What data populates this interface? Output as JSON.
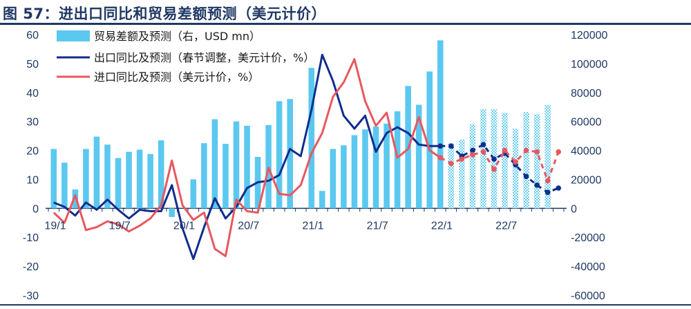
{
  "figure": {
    "title": "图 57：进出口同比和贸易差额预测（美元计价）"
  },
  "chart_data": {
    "type": "bar+line",
    "title": "图 57：进出口同比和贸易差额预测（美元计价）",
    "categories": [
      "19/1",
      "19/2",
      "19/3",
      "19/4",
      "19/5",
      "19/6",
      "19/7",
      "19/8",
      "19/9",
      "19/10",
      "19/11",
      "19/12",
      "20/1",
      "20/2",
      "20/3",
      "20/4",
      "20/5",
      "20/6",
      "20/7",
      "20/8",
      "20/9",
      "20/10",
      "20/11",
      "20/12",
      "21/1",
      "21/2",
      "21/3",
      "21/4",
      "21/5",
      "21/6",
      "21/7",
      "21/8",
      "21/9",
      "21/10",
      "21/11",
      "21/12",
      "22/1",
      "22/2",
      "22/3",
      "22/4",
      "22/5",
      "22/6",
      "22/7",
      "22/8",
      "22/9",
      "22/10",
      "22/11",
      "22/12"
    ],
    "x_tick_labels": [
      "19/1",
      "19/7",
      "20/1",
      "20/7",
      "21/1",
      "21/7",
      "22/1",
      "22/7"
    ],
    "x_tick_indices": [
      0,
      6,
      12,
      18,
      24,
      30,
      36,
      42
    ],
    "y_left": {
      "ticks": [
        60,
        50,
        40,
        30,
        20,
        10,
        0,
        -10,
        -20,
        -30
      ],
      "ylim": [
        -30,
        60
      ]
    },
    "y_right": {
      "ticks": [
        120000,
        100000,
        80000,
        60000,
        40000,
        20000,
        0,
        -20000,
        -40000,
        -60000
      ],
      "ylim": [
        -60000,
        120000
      ]
    },
    "forecast_start_index": 37,
    "legend": {
      "position": "top-left"
    },
    "series": [
      {
        "name": "贸易差额及预测（右，USD mn）",
        "kind": "bar",
        "axis": "right",
        "color": "#5bc8f0",
        "values": [
          41000,
          31500,
          13000,
          41000,
          49500,
          44000,
          34700,
          39000,
          40500,
          37500,
          47000,
          -6000,
          null,
          20000,
          45000,
          61500,
          44500,
          60000,
          57000,
          35500,
          57500,
          74000,
          75500,
          null,
          97000,
          12000,
          41000,
          43500,
          50500,
          54500,
          56500,
          58500,
          67000,
          84500,
          71500,
          94500,
          116000,
          45000,
          47500,
          58000,
          68500,
          68500,
          66000,
          55000,
          66500,
          65000,
          71500,
          null
        ]
      },
      {
        "name": "出口同比及预测（春节调整，美元计价，%）",
        "kind": "line",
        "axis": "left",
        "color": "#0f2d8c",
        "values": [
          2,
          0.5,
          -2.5,
          2,
          -0.5,
          3,
          -0.5,
          -3.5,
          -0.5,
          -1,
          -1,
          8,
          -7,
          -17.5,
          -6.5,
          3.5,
          -3.5,
          0.5,
          7,
          9,
          9.5,
          11.5,
          20.5,
          18,
          34,
          53,
          44,
          32,
          27.5,
          32,
          19.5,
          26,
          28,
          26,
          22,
          21.5,
          21.5,
          21.5,
          18,
          20,
          22,
          17,
          19,
          15,
          11,
          8,
          5.5,
          7
        ]
      },
      {
        "name": "进口同比及预测（美元计价，%）",
        "kind": "line",
        "axis": "left",
        "color": "#e8575f",
        "values": [
          -1.5,
          -5,
          4.5,
          -7.5,
          -6.5,
          -4.5,
          -5.5,
          -8,
          -6,
          -3.5,
          1,
          16.5,
          1,
          -4,
          -1.5,
          -14,
          -16.5,
          3,
          -1,
          -1.5,
          14,
          5,
          4.5,
          8,
          19,
          26,
          38.5,
          43.5,
          51.5,
          37,
          28.5,
          33,
          17.5,
          20.5,
          31.5,
          20,
          17.5,
          15.5,
          17,
          18.5,
          19.5,
          13.5,
          20,
          16,
          20,
          19.5,
          9.5,
          19.5
        ]
      }
    ]
  },
  "legend_labels": {
    "trade": "贸易差额及预测（右，USD mn）",
    "exports": "出口同比及预测（春节调整，美元计价，%）",
    "imports": "进口同比及预测（美元计价，%）"
  }
}
